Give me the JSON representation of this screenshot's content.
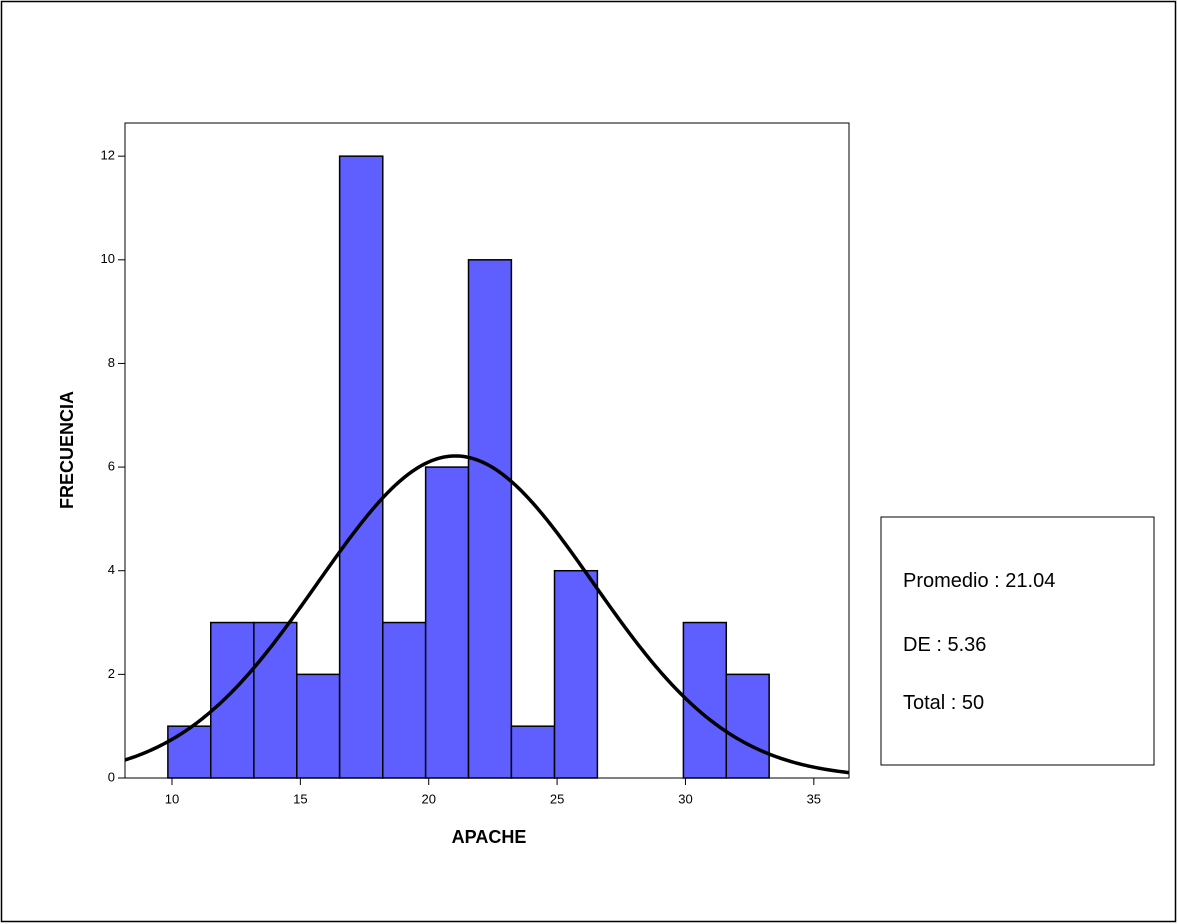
{
  "chart_data": {
    "type": "histogram",
    "x_label": "APACHE",
    "y_label": "FRECUENCIA",
    "bins": [
      9.84,
      11.51,
      13.19,
      14.86,
      16.53,
      18.21,
      19.88,
      21.55,
      23.22,
      24.9,
      26.57,
      28.24,
      29.92,
      31.59,
      33.26
    ],
    "values": [
      1,
      3,
      3,
      2,
      12,
      3,
      6,
      10,
      1,
      4,
      0,
      0,
      3,
      2
    ],
    "color": "#5f5fff",
    "xlim": [
      8.17,
      36.37
    ],
    "xticks": [
      10,
      15,
      20,
      25,
      30,
      35
    ],
    "ylim": [
      0,
      12.64
    ],
    "yticks": [
      0,
      2,
      4,
      6,
      8,
      10,
      12
    ],
    "normal_curve": true,
    "stats": [
      {
        "label": "Promedio :",
        "value": 21.04
      },
      {
        "label": "DE :",
        "value": 5.36
      },
      {
        "label": "Total :",
        "value": 50
      }
    ]
  }
}
